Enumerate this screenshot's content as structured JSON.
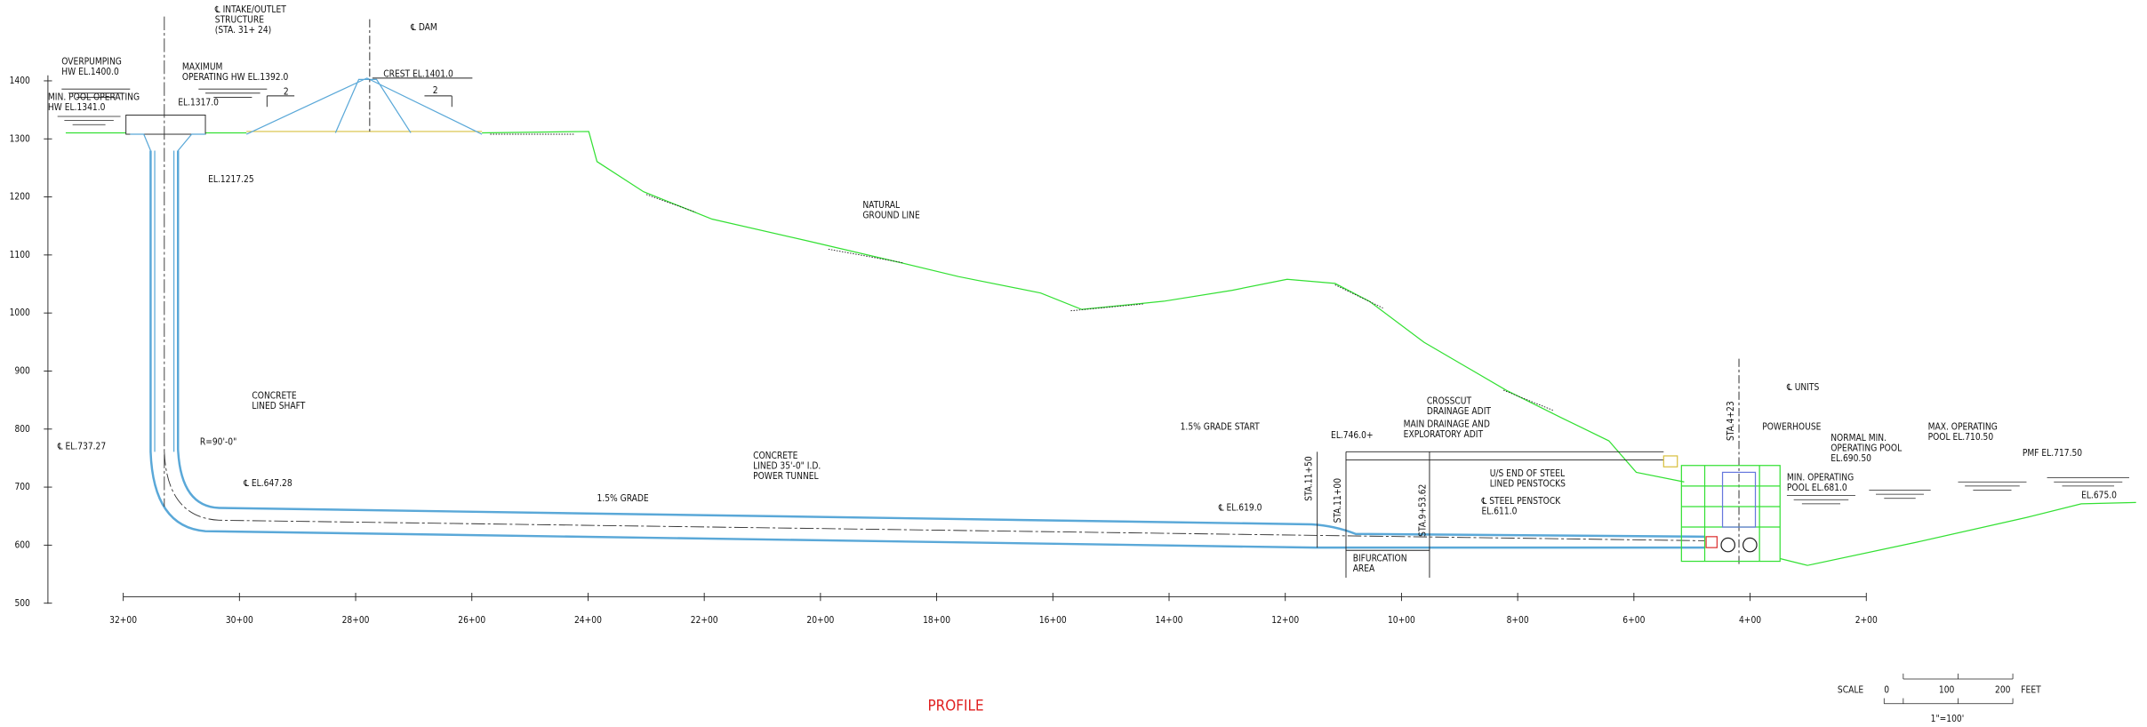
{
  "title": "PROFILE",
  "elevation_labels": [
    "1400",
    "1300",
    "1200",
    "1100",
    "1000",
    "900",
    "800",
    "700",
    "600",
    "500"
  ],
  "station_labels": [
    "32+00",
    "30+00",
    "28+00",
    "26+00",
    "24+00",
    "22+00",
    "20+00",
    "18+00",
    "16+00",
    "14+00",
    "12+00",
    "10+00",
    "8+00",
    "6+00",
    "4+00",
    "2+00"
  ],
  "annotations": [
    [
      "℄ INTAKE/OUTLET",
      "STRUCTURE",
      "(STA. 31+ 24)"
    ],
    [
      "℄ DAM"
    ],
    [
      "OVERPUMPING",
      "HW EL.1400.0"
    ],
    [
      "MAXIMUM",
      "OPERATING HW EL.1392.0"
    ],
    [
      "MIN. POOL OPERATING",
      "HW EL.1341.0"
    ],
    [
      "EL.1317.0"
    ],
    [
      "CREST EL.1401.0"
    ],
    [
      "2"
    ],
    [
      "2"
    ],
    [
      "EL.1217.25"
    ],
    [
      "NATURAL",
      "GROUND LINE"
    ],
    [
      "CONCRETE",
      "LINED SHAFT"
    ],
    [
      "℄ EL.737.27"
    ],
    [
      "R=90'-0\""
    ],
    [
      "℄ EL.647.28"
    ],
    [
      "1.5% GRADE"
    ],
    [
      "CONCRETE",
      "LINED 35'-0\" I.D.",
      "POWER TUNNEL"
    ],
    [
      "1.5% GRADE START"
    ],
    [
      "℄ EL.619.0"
    ],
    [
      "STA.11+50"
    ],
    [
      "STA.11+00"
    ],
    [
      "STA.9+53.62"
    ],
    [
      "EL.746.0+"
    ],
    [
      "CROSSCUT",
      "DRAINAGE ADIT"
    ],
    [
      "MAIN DRAINAGE AND",
      "EXPLORATORY ADIT"
    ],
    [
      "U/S END OF STEEL",
      "LINED PENSTOCKS"
    ],
    [
      "℄ STEEL PENSTOCK",
      "EL.611.0"
    ],
    [
      "BIFURCATION",
      "AREA"
    ],
    [
      "STA.4+23"
    ],
    [
      "℄ UNITS"
    ],
    [
      "POWERHOUSE"
    ],
    [
      "NORMAL MIN.",
      "OPERATING POOL",
      "EL.690.50"
    ],
    [
      "MAX. OPERATING",
      "POOL EL.710.50"
    ],
    [
      "MIN. OPERATING",
      "POOL EL.681.0"
    ],
    [
      "PMF EL.717.50"
    ],
    [
      "EL.675.0"
    ]
  ],
  "scale": {
    "label": "SCALE",
    "ticks": [
      "0",
      "100",
      "200"
    ],
    "unit": "FEET",
    "ratio": "1\"=100'"
  }
}
